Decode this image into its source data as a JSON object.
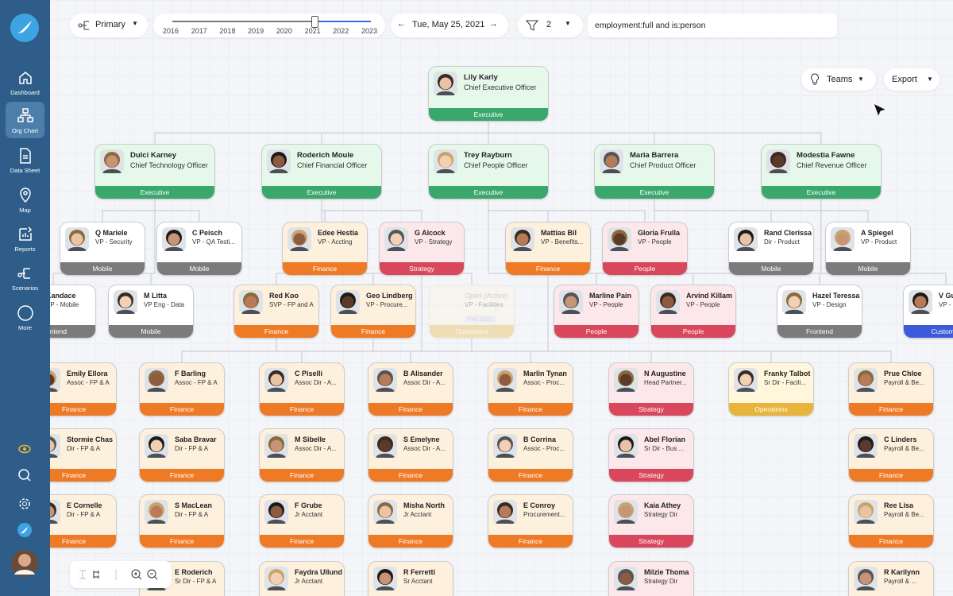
{
  "sidebar": {
    "items": [
      "Dashboard",
      "Org Chart",
      "Data Sheet",
      "Map",
      "Reports",
      "Scenarios",
      "More"
    ],
    "active": 1
  },
  "toolbar": {
    "scenario": "Primary",
    "years": [
      "2016",
      "2017",
      "2018",
      "2019",
      "2020",
      "2021",
      "2022",
      "2023"
    ],
    "selected_year": 5,
    "date": "Tue, May 25, 2021",
    "filter_count": "2",
    "query": "employment:full and is:person"
  },
  "actions": {
    "teams": "Teams",
    "export": "Export"
  },
  "nodes": [
    {
      "name": "Lily Karly",
      "title": "Chief Executive Officer",
      "team": "Executive",
      "color": "#3aa76d",
      "fill": "#e6f8e9"
    },
    {
      "name": "Dulci Karney",
      "title": "Chief Technology Officer",
      "team": "Executive",
      "color": "#3aa76d",
      "fill": "#e6f8e9"
    },
    {
      "name": "Roderich Moule",
      "title": "Chief Financial Officer",
      "team": "Executive",
      "color": "#3aa76d",
      "fill": "#e6f8e9"
    },
    {
      "name": "Trey Rayburn",
      "title": "Chief People Officer",
      "team": "Executive",
      "color": "#3aa76d",
      "fill": "#e6f8e9"
    },
    {
      "name": "Maria Barrera",
      "title": "Chief Product Officer",
      "team": "Executive",
      "color": "#3aa76d",
      "fill": "#e6f8e9"
    },
    {
      "name": "Modestia Fawne",
      "title": "Chief Revenue Officer",
      "team": "Executive",
      "color": "#3aa76d",
      "fill": "#e6f8e9"
    },
    {
      "name": "Q Mariele",
      "title": "VP - Security",
      "team": "Mobile",
      "color": "#7b7b7b",
      "fill": "#ffffff"
    },
    {
      "name": "C Peisch",
      "title": "VP - QA Testi...",
      "team": "Mobile",
      "color": "#7b7b7b",
      "fill": "#ffffff"
    },
    {
      "name": "Edee Hestia",
      "title": "VP - Accting",
      "team": "Finance",
      "color": "#ef7a26",
      "fill": "#fdf0dd"
    },
    {
      "name": "G Alcock",
      "title": "VP - Strategy",
      "team": "Strategy",
      "color": "#d8475b",
      "fill": "#fce8ea"
    },
    {
      "name": "Mattias Bil",
      "title": "VP - Benefits...",
      "team": "Finance",
      "color": "#ef7a26",
      "fill": "#fdf0dd"
    },
    {
      "name": "Gloria Frulla",
      "title": "VP - People",
      "team": "People",
      "color": "#d8475b",
      "fill": "#fce8ea"
    },
    {
      "name": "Rand Clerissa",
      "title": "Dir - Product",
      "team": "Mobile",
      "color": "#7b7b7b",
      "fill": "#ffffff"
    },
    {
      "name": "A Spiegel",
      "title": "VP - Product",
      "team": "Mobile",
      "color": "#7b7b7b",
      "fill": "#ffffff"
    },
    {
      "name": "Kandace",
      "title": "VP - Mobile",
      "team": "Frontend",
      "color": "#7b7b7b",
      "fill": "#ffffff"
    },
    {
      "name": "M Litta",
      "title": "VP Eng - Data",
      "team": "Mobile",
      "color": "#7b7b7b",
      "fill": "#ffffff"
    },
    {
      "name": "Red Koo",
      "title": "SVP - FP and A",
      "team": "Finance",
      "color": "#ef7a26",
      "fill": "#fdf0dd"
    },
    {
      "name": "Geo Lindberg",
      "title": "VP - Procure...",
      "team": "Finance",
      "color": "#ef7a26",
      "fill": "#fdf0dd"
    },
    {
      "name": "Open (Active)",
      "title": "VP - Facilities",
      "note": "Feb 2020",
      "team": "Operations",
      "color": "#e8b53a",
      "fill": "#fff6dc",
      "faded": true
    },
    {
      "name": "Marline Pain",
      "title": "VP - People",
      "team": "People",
      "color": "#d8475b",
      "fill": "#fce8ea"
    },
    {
      "name": "Arvind Killam",
      "title": "VP - People",
      "team": "People",
      "color": "#d8475b",
      "fill": "#fce8ea"
    },
    {
      "name": "Hazel Teressa",
      "title": "VP - Design",
      "team": "Frontend",
      "color": "#7b7b7b",
      "fill": "#ffffff"
    },
    {
      "name": "V Gu",
      "title": "VP -",
      "team": "Customer",
      "color": "#3b5bdb",
      "fill": "#ffffff"
    },
    {
      "name": "Emily Ellora",
      "title": "Assoc - FP & A",
      "team": "Finance",
      "color": "#ef7a26",
      "fill": "#fdf0dd"
    },
    {
      "name": "Stormie Chas",
      "title": "Dir - FP & A",
      "team": "Finance",
      "color": "#ef7a26",
      "fill": "#fdf0dd"
    },
    {
      "name": "E Cornelle",
      "title": "Dir - FP & A",
      "team": "Finance",
      "color": "#ef7a26",
      "fill": "#fdf0dd"
    },
    {
      "name": "F Barling",
      "title": "Assoc - FP & A",
      "team": "Finance",
      "color": "#ef7a26",
      "fill": "#fdf0dd"
    },
    {
      "name": "Saba Bravar",
      "title": "Dir - FP & A",
      "team": "Finance",
      "color": "#ef7a26",
      "fill": "#fdf0dd"
    },
    {
      "name": "S MacLean",
      "title": "Dir - FP & A",
      "team": "Finance",
      "color": "#ef7a26",
      "fill": "#fdf0dd"
    },
    {
      "name": "E Roderich",
      "title": "Sr Dir - FP & A",
      "color": "#ef7a26",
      "fill": "#fdf0dd"
    },
    {
      "name": "C Piselli",
      "title": "Assoc Dir - A...",
      "team": "Finance",
      "color": "#ef7a26",
      "fill": "#fdf0dd"
    },
    {
      "name": "M Sibelle",
      "title": "Assoc Dir - A...",
      "team": "Finance",
      "color": "#ef7a26",
      "fill": "#fdf0dd"
    },
    {
      "name": "F Grube",
      "title": "Jr Acctant",
      "team": "Finance",
      "color": "#ef7a26",
      "fill": "#fdf0dd"
    },
    {
      "name": "Faydra Ullund",
      "title": "Jr Acctant",
      "color": "#ef7a26",
      "fill": "#fdf0dd"
    },
    {
      "name": "B Alisander",
      "title": "Assoc Dir - A...",
      "team": "Finance",
      "color": "#ef7a26",
      "fill": "#fdf0dd"
    },
    {
      "name": "S Emelyne",
      "title": "Assoc Dir - A...",
      "team": "Finance",
      "color": "#ef7a26",
      "fill": "#fdf0dd"
    },
    {
      "name": "Misha North",
      "title": "Jr Acctant",
      "team": "Finance",
      "color": "#ef7a26",
      "fill": "#fdf0dd"
    },
    {
      "name": "R Ferretti",
      "title": "Sr Acctant",
      "color": "#ef7a26",
      "fill": "#fdf0dd"
    },
    {
      "name": "Marlin Tynan",
      "title": "Assoc - Proc...",
      "team": "Finance",
      "color": "#ef7a26",
      "fill": "#fdf0dd"
    },
    {
      "name": "B Corrina",
      "title": "Assoc - Proc...",
      "team": "Finance",
      "color": "#ef7a26",
      "fill": "#fdf0dd"
    },
    {
      "name": "E Conroy",
      "title": "Procurement...",
      "team": "Finance",
      "color": "#ef7a26",
      "fill": "#fdf0dd"
    },
    {
      "name": "N Augustine",
      "title": "Head Partner...",
      "team": "Strategy",
      "color": "#d8475b",
      "fill": "#fce8ea"
    },
    {
      "name": "Abel Florian",
      "title": "Sr Dir - Bus ...",
      "team": "Strategy",
      "color": "#d8475b",
      "fill": "#fce8ea"
    },
    {
      "name": "Kaia Athey",
      "title": "Strategy Dir",
      "team": "Strategy",
      "color": "#d8475b",
      "fill": "#fce8ea"
    },
    {
      "name": "Milzie Thoma",
      "title": "Strategy Dir",
      "color": "#d8475b",
      "fill": "#fce8ea"
    },
    {
      "name": "Franky Talbot",
      "title": "Sr Dir - Facili...",
      "team": "Operations",
      "color": "#e8b53a",
      "fill": "#fff6dc"
    },
    {
      "name": "Prue Chloe",
      "title": "Payroll & Be...",
      "team": "Finance",
      "color": "#ef7a26",
      "fill": "#fdf0dd"
    },
    {
      "name": "C Linders",
      "title": "Payroll & Be...",
      "team": "Finance",
      "color": "#ef7a26",
      "fill": "#fdf0dd"
    },
    {
      "name": "Ree Lisa",
      "title": "Payroll & Be...",
      "team": "Finance",
      "color": "#ef7a26",
      "fill": "#fdf0dd"
    },
    {
      "name": "R Karilynn",
      "title": "Payroll & ...",
      "color": "#ef7a26",
      "fill": "#fdf0dd"
    }
  ]
}
